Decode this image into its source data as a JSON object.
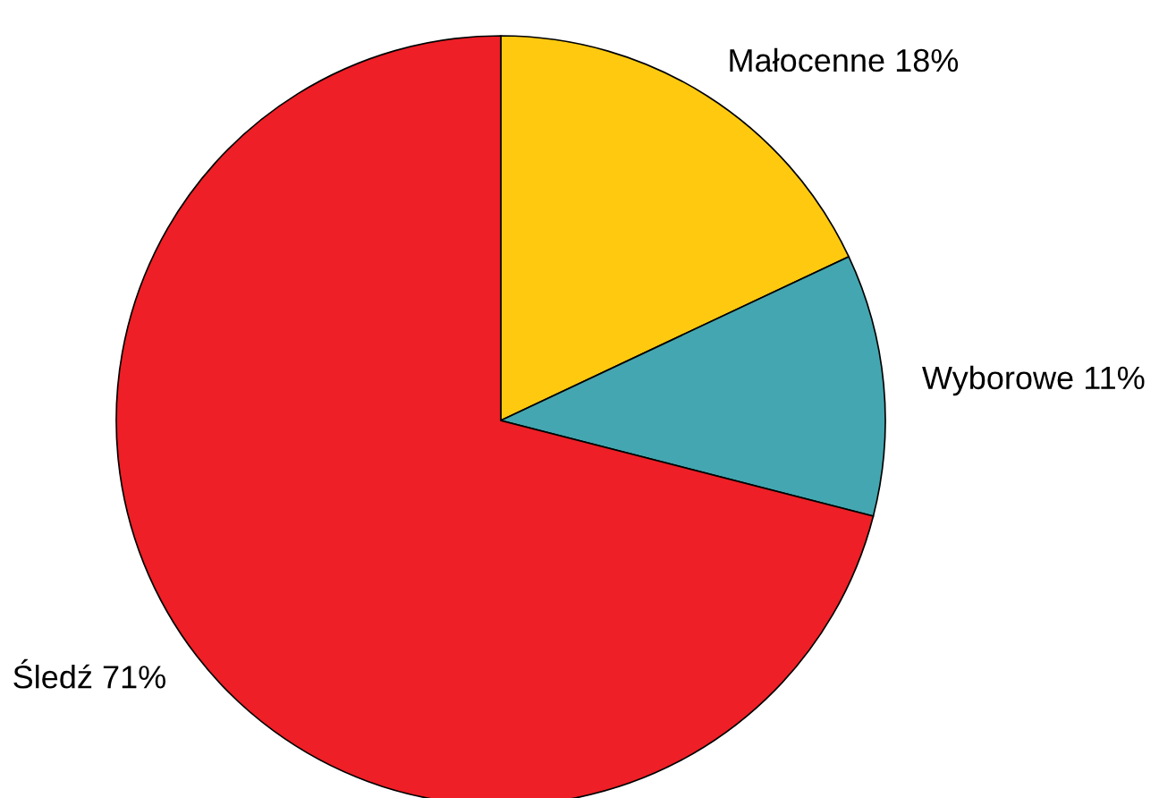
{
  "chart_data": {
    "type": "pie",
    "categories": [
      "Małocenne",
      "Wyborowe",
      "Śledź"
    ],
    "values": [
      18,
      11,
      71
    ],
    "value_labels": [
      "18%",
      "11%",
      "71%"
    ],
    "colors": [
      "#fec90f",
      "#44a6b0",
      "#ee1f26"
    ],
    "legend": false
  }
}
